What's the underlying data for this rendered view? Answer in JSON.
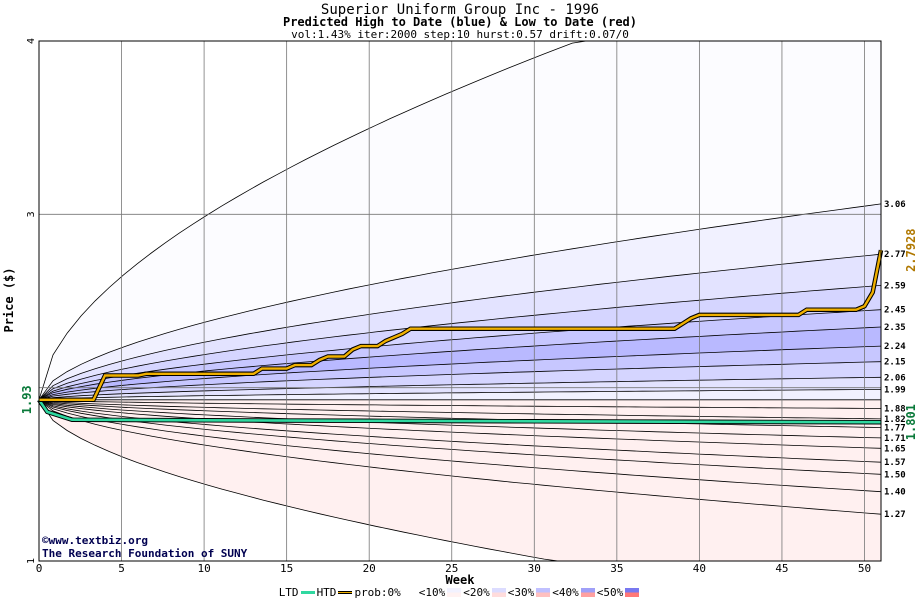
{
  "title": "Superior Uniform Group Inc - 1996",
  "subtitle": "Predicted High to Date (blue) &  Low to Date (red)",
  "params": "vol:1.43% iter:2000 step:10 hurst:0.57 drift:0.07/0",
  "credit1": "©www.textbiz.org",
  "credit2": "The Research Foundation of SUNY",
  "legend": {
    "ltd": "LTD",
    "htd": "HTD",
    "prob": "prob:0%",
    "b10": "<10%",
    "b20": "<20%",
    "b30": "<30%",
    "b40": "<40%",
    "b50": "<50%"
  },
  "chart_data": {
    "type": "area",
    "xlabel": "Week",
    "ylabel": "Price ($)",
    "xlim": [
      0,
      51
    ],
    "ylim": [
      1,
      4
    ],
    "xticks": [
      0,
      5,
      10,
      15,
      20,
      25,
      30,
      35,
      40,
      45,
      50
    ],
    "yticks": [
      1,
      3,
      4
    ],
    "start_price": 1.93,
    "start_label": "1.93",
    "htd_final_label": "2.7928",
    "ltd_final_label": "1.801",
    "htd_final": 2.7928,
    "ltd_final": 1.801,
    "right_labels": [
      "3.06",
      "2.77",
      "2.59",
      "2.45",
      "2.35",
      "2.24",
      "2.15",
      "2.06",
      "1.99",
      "1.88",
      "1.82",
      "1.77",
      "1.71",
      "1.65",
      "1.57",
      "1.50",
      "1.40",
      "1.27"
    ],
    "high_quantiles": [
      {
        "end": 4.6,
        "shade": 0.02
      },
      {
        "end": 3.06,
        "shade": 0.1
      },
      {
        "end": 2.77,
        "shade": 0.2
      },
      {
        "end": 2.59,
        "shade": 0.3
      },
      {
        "end": 2.45,
        "shade": 0.4
      },
      {
        "end": 2.35,
        "shade": 0.5
      },
      {
        "end": 2.24,
        "shade": 0.4
      },
      {
        "end": 2.15,
        "shade": 0.3
      },
      {
        "end": 2.06,
        "shade": 0.2
      },
      {
        "end": 1.99,
        "shade": 0.1
      }
    ],
    "low_quantiles": [
      {
        "end": 1.88,
        "shade": 0.02
      },
      {
        "end": 1.82,
        "shade": 0.1
      },
      {
        "end": 1.77,
        "shade": 0.2
      },
      {
        "end": 1.71,
        "shade": 0.3
      },
      {
        "end": 1.65,
        "shade": 0.4
      },
      {
        "end": 1.57,
        "shade": 0.5
      },
      {
        "end": 1.5,
        "shade": 0.4
      },
      {
        "end": 1.4,
        "shade": 0.3
      },
      {
        "end": 1.27,
        "shade": 0.2
      },
      {
        "end": 0.7,
        "shade": 0.1
      }
    ],
    "htd_series": {
      "name": "HTD",
      "x": [
        0,
        3.3,
        4,
        6,
        6.5,
        13,
        13.5,
        15,
        15.5,
        16.5,
        17,
        17.5,
        18.5,
        19,
        19.5,
        20.5,
        21,
        21.5,
        22,
        22.5,
        38.5,
        39,
        39.5,
        40,
        40.5,
        46,
        46.5,
        49.5,
        50,
        50.5,
        51
      ],
      "y": [
        1.93,
        1.93,
        2.07,
        2.07,
        2.08,
        2.08,
        2.11,
        2.11,
        2.13,
        2.13,
        2.16,
        2.18,
        2.18,
        2.22,
        2.24,
        2.24,
        2.27,
        2.29,
        2.31,
        2.34,
        2.34,
        2.37,
        2.4,
        2.42,
        2.42,
        2.42,
        2.45,
        2.45,
        2.47,
        2.55,
        2.7928
      ]
    },
    "ltd_series": {
      "name": "LTD",
      "x": [
        0,
        0.5,
        2,
        10,
        20,
        30,
        40,
        51
      ],
      "y": [
        1.93,
        1.86,
        1.815,
        1.812,
        1.809,
        1.806,
        1.803,
        1.801
      ]
    }
  }
}
